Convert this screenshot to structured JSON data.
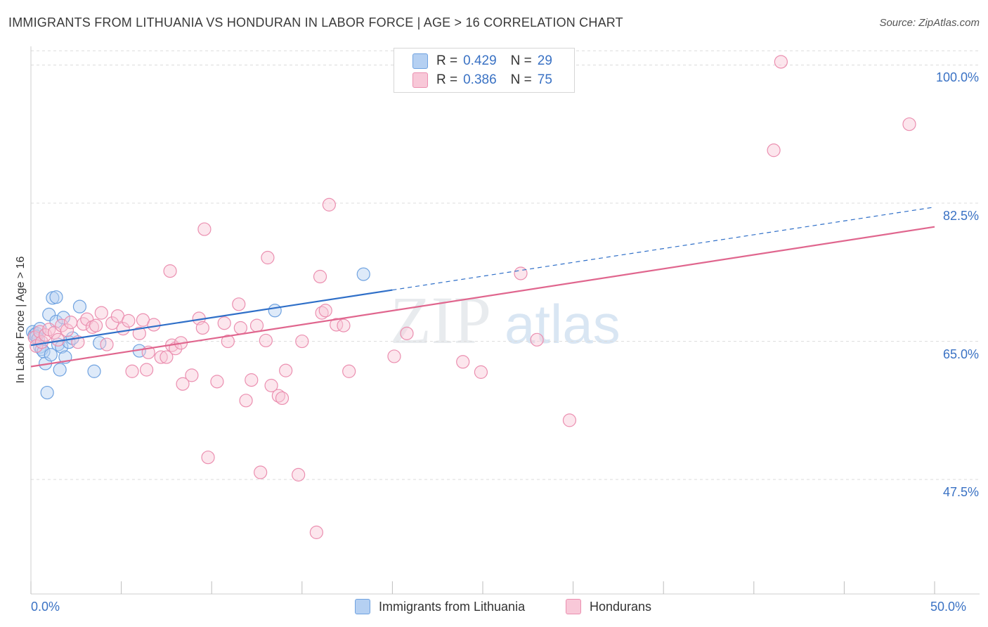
{
  "title": "IMMIGRANTS FROM LITHUANIA VS HONDURAN IN LABOR FORCE | AGE > 16 CORRELATION CHART",
  "source": "Source: ZipAtlas.com",
  "legend_stats": [
    {
      "r_label": "R =",
      "r_value": "0.429",
      "n_label": "N =",
      "n_value": "29",
      "color": "#6fa2e0",
      "fill": "#b5d0f2"
    },
    {
      "r_label": "R =",
      "r_value": "0.386",
      "n_label": "N =",
      "n_value": "75",
      "color": "#eb8fb0",
      "fill": "#f8c8d8"
    }
  ],
  "chart_data": {
    "type": "scatter",
    "title": "IMMIGRANTS FROM LITHUANIA VS HONDURAN IN LABOR FORCE | AGE > 16 CORRELATION CHART",
    "xlabel": "",
    "ylabel": "In Labor Force | Age > 16",
    "xlim": [
      0,
      50
    ],
    "ylim": [
      33,
      102
    ],
    "x_tick_labels": [
      "0.0%",
      "50.0%"
    ],
    "y_ticks": [
      47.5,
      65.0,
      82.5,
      100.0
    ],
    "y_tick_labels": [
      "47.5%",
      "65.0%",
      "82.5%",
      "100.0%"
    ],
    "grid": true,
    "series": [
      {
        "name": "Immigrants from Lithuania",
        "color": "#6fa2e0",
        "fill": "#b5d0f2",
        "points": [
          [
            0.1,
            66.2
          ],
          [
            0.2,
            65.8
          ],
          [
            0.3,
            66.0
          ],
          [
            0.3,
            65.6
          ],
          [
            0.5,
            66.6
          ],
          [
            0.5,
            64.3
          ],
          [
            0.6,
            64.0
          ],
          [
            0.7,
            63.7
          ],
          [
            0.8,
            62.2
          ],
          [
            0.9,
            58.5
          ],
          [
            1.0,
            68.4
          ],
          [
            1.1,
            63.3
          ],
          [
            1.2,
            70.5
          ],
          [
            1.4,
            70.6
          ],
          [
            1.4,
            67.5
          ],
          [
            1.5,
            64.6
          ],
          [
            1.6,
            61.4
          ],
          [
            1.7,
            64.3
          ],
          [
            1.8,
            68.0
          ],
          [
            1.9,
            63.0
          ],
          [
            2.1,
            64.9
          ],
          [
            2.3,
            65.4
          ],
          [
            2.7,
            69.4
          ],
          [
            3.5,
            61.2
          ],
          [
            3.8,
            64.8
          ],
          [
            6.0,
            63.8
          ],
          [
            13.5,
            68.9
          ],
          [
            18.4,
            73.5
          ],
          [
            0.4,
            65.3
          ]
        ],
        "trend": {
          "x0": 0,
          "y0": 64.5,
          "x1": 50,
          "y1": 82.0,
          "solid_until_x": 20
        }
      },
      {
        "name": "Hondurans",
        "color": "#eb8fb0",
        "fill": "#f8c8d8",
        "points": [
          [
            0.2,
            65.5
          ],
          [
            0.3,
            64.4
          ],
          [
            0.5,
            66.2
          ],
          [
            0.6,
            64.9
          ],
          [
            0.8,
            65.8
          ],
          [
            1.0,
            66.5
          ],
          [
            1.3,
            66.1
          ],
          [
            1.5,
            65.2
          ],
          [
            1.7,
            67.0
          ],
          [
            2.0,
            66.4
          ],
          [
            2.2,
            67.4
          ],
          [
            2.6,
            64.9
          ],
          [
            2.9,
            67.2
          ],
          [
            3.1,
            67.8
          ],
          [
            3.4,
            66.8
          ],
          [
            3.6,
            67.0
          ],
          [
            3.9,
            68.6
          ],
          [
            4.2,
            64.6
          ],
          [
            4.5,
            67.3
          ],
          [
            4.8,
            68.2
          ],
          [
            5.1,
            66.6
          ],
          [
            5.4,
            67.6
          ],
          [
            5.6,
            61.2
          ],
          [
            6.0,
            66.0
          ],
          [
            6.2,
            67.7
          ],
          [
            6.4,
            61.4
          ],
          [
            6.5,
            63.6
          ],
          [
            6.8,
            67.1
          ],
          [
            7.2,
            63.0
          ],
          [
            7.5,
            63.0
          ],
          [
            7.7,
            73.9
          ],
          [
            7.8,
            64.5
          ],
          [
            8.0,
            64.1
          ],
          [
            8.3,
            64.8
          ],
          [
            8.4,
            59.6
          ],
          [
            8.9,
            60.7
          ],
          [
            9.3,
            67.9
          ],
          [
            9.5,
            66.7
          ],
          [
            9.6,
            79.2
          ],
          [
            9.8,
            50.3
          ],
          [
            10.3,
            59.9
          ],
          [
            10.7,
            67.3
          ],
          [
            10.9,
            65.0
          ],
          [
            11.5,
            69.7
          ],
          [
            11.6,
            66.7
          ],
          [
            11.9,
            57.5
          ],
          [
            12.2,
            60.1
          ],
          [
            12.5,
            67.0
          ],
          [
            12.7,
            48.4
          ],
          [
            13.0,
            65.1
          ],
          [
            13.1,
            75.6
          ],
          [
            13.3,
            59.4
          ],
          [
            13.7,
            58.1
          ],
          [
            13.9,
            57.8
          ],
          [
            14.1,
            61.3
          ],
          [
            14.8,
            48.1
          ],
          [
            15.0,
            65.0
          ],
          [
            15.8,
            40.8
          ],
          [
            16.0,
            73.2
          ],
          [
            16.1,
            68.6
          ],
          [
            16.3,
            68.9
          ],
          [
            16.5,
            82.3
          ],
          [
            16.9,
            67.1
          ],
          [
            17.3,
            67.0
          ],
          [
            17.6,
            61.2
          ],
          [
            20.1,
            63.1
          ],
          [
            20.8,
            66.0
          ],
          [
            23.9,
            62.4
          ],
          [
            24.9,
            61.1
          ],
          [
            27.1,
            73.6
          ],
          [
            28.0,
            65.2
          ],
          [
            29.8,
            55.0
          ],
          [
            41.1,
            89.2
          ],
          [
            41.5,
            100.4
          ],
          [
            48.6,
            92.5
          ]
        ],
        "trend": {
          "x0": 0,
          "y0": 61.8,
          "x1": 50,
          "y1": 79.5
        }
      }
    ]
  }
}
